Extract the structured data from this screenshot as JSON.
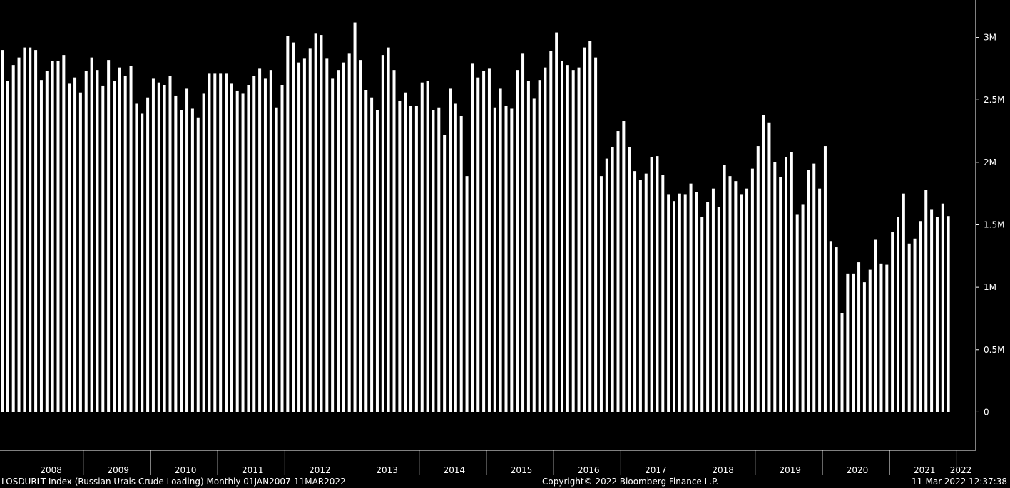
{
  "colors": {
    "background": "#000000",
    "bars": "#ffffff",
    "axis": "#ffffff"
  },
  "footer": {
    "left": "LOSDURLT Index (Russian Urals Crude Loading)  Monthly 01JAN2007-11MAR2022",
    "center": "Copyright© 2022 Bloomberg Finance L.P.",
    "right": "11-Mar-2022 12:37:38"
  },
  "chart_data": {
    "type": "bar",
    "title": "",
    "xlabel": "",
    "ylabel": "",
    "ylim": [
      -300000,
      3300000
    ],
    "yticks": [
      0,
      500000,
      1000000,
      1500000,
      2000000,
      2500000,
      3000000
    ],
    "ytick_labels": [
      "0",
      "0.5M",
      "1M",
      "1.5M",
      "2M",
      "2.5M",
      "3M"
    ],
    "y_axis_position": "right",
    "grid": false,
    "x_start": "2007-10",
    "x_end": "2022-03",
    "year_labels": [
      "2008",
      "2009",
      "2010",
      "2011",
      "2012",
      "2013",
      "2014",
      "2015",
      "2016",
      "2017",
      "2018",
      "2019",
      "2020",
      "2021",
      "2022"
    ],
    "values": [
      2900000,
      2650000,
      2780000,
      2840000,
      2920000,
      2920000,
      2900000,
      2660000,
      2730000,
      2810000,
      2810000,
      2860000,
      2630000,
      2680000,
      2560000,
      2730000,
      2840000,
      2740000,
      2610000,
      2820000,
      2650000,
      2760000,
      2690000,
      2770000,
      2470000,
      2390000,
      2520000,
      2670000,
      2640000,
      2620000,
      2690000,
      2530000,
      2420000,
      2590000,
      2430000,
      2360000,
      2550000,
      2710000,
      2710000,
      2710000,
      2710000,
      2630000,
      2570000,
      2550000,
      2620000,
      2690000,
      2750000,
      2670000,
      2740000,
      2440000,
      2620000,
      3010000,
      2960000,
      2800000,
      2830000,
      2910000,
      3030000,
      3020000,
      2830000,
      2670000,
      2740000,
      2800000,
      2870000,
      3120000,
      2820000,
      2580000,
      2520000,
      2420000,
      2860000,
      2920000,
      2740000,
      2490000,
      2560000,
      2450000,
      2450000,
      2640000,
      2650000,
      2420000,
      2440000,
      2220000,
      2590000,
      2470000,
      2370000,
      1890000,
      2790000,
      2680000,
      2730000,
      2750000,
      2440000,
      2590000,
      2450000,
      2430000,
      2740000,
      2870000,
      2650000,
      2510000,
      2660000,
      2760000,
      2890000,
      3040000,
      2810000,
      2780000,
      2740000,
      2760000,
      2920000,
      2970000,
      2840000,
      1890000,
      2030000,
      2120000,
      2250000,
      2330000,
      2120000,
      1930000,
      1860000,
      1910000,
      2040000,
      2050000,
      1900000,
      1740000,
      1690000,
      1750000,
      1740000,
      1830000,
      1760000,
      1560000,
      1680000,
      1790000,
      1640000,
      1980000,
      1890000,
      1850000,
      1740000,
      1790000,
      1950000,
      2130000,
      2380000,
      2320000,
      2000000,
      1880000,
      2040000,
      2080000,
      1580000,
      1660000,
      1940000,
      1990000,
      1790000,
      2130000,
      1370000,
      1320000,
      790000,
      1110000,
      1110000,
      1200000,
      1040000,
      1140000,
      1380000,
      1190000,
      1180000,
      1440000,
      1560000,
      1750000,
      1350000,
      1390000,
      1530000,
      1780000,
      1620000,
      1560000,
      1670000,
      1570000
    ]
  }
}
